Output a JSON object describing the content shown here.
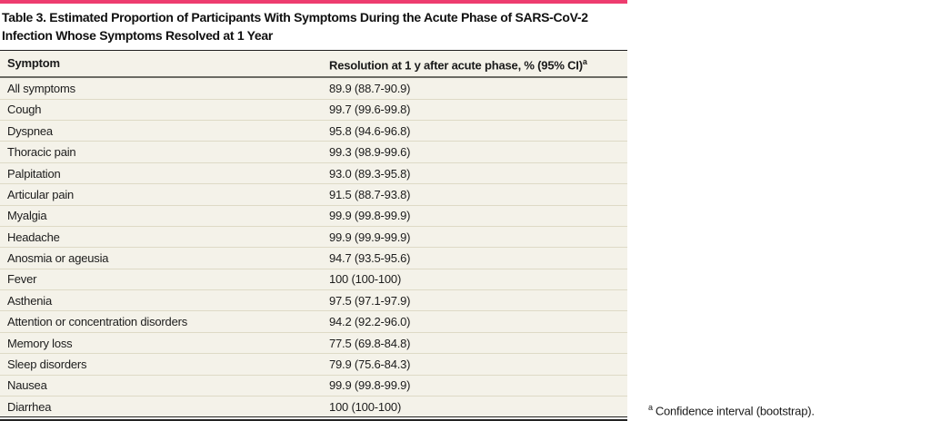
{
  "table": {
    "title": "Table 3. Estimated Proportion of Participants With Symptoms During the Acute Phase of SARS-CoV-2 Infection Whose Symptoms Resolved at 1 Year",
    "columns": {
      "symptom": "Symptom",
      "resolution": "Resolution at 1 y after acute phase, % (95% CI)"
    },
    "header_superscript": "a",
    "rows": [
      [
        "All symptoms",
        "89.9 (88.7-90.9)"
      ],
      [
        "Cough",
        "99.7 (99.6-99.8)"
      ],
      [
        "Dyspnea",
        "95.8 (94.6-96.8)"
      ],
      [
        "Thoracic pain",
        "99.3 (98.9-99.6)"
      ],
      [
        "Palpitation",
        "93.0 (89.3-95.8)"
      ],
      [
        "Articular pain",
        "91.5 (88.7-93.8)"
      ],
      [
        "Myalgia",
        "99.9 (99.8-99.9)"
      ],
      [
        "Headache",
        "99.9 (99.9-99.9)"
      ],
      [
        "Anosmia or ageusia",
        "94.7 (93.5-95.6)"
      ],
      [
        "Fever",
        "100 (100-100)"
      ],
      [
        "Asthenia",
        "97.5 (97.1-97.9)"
      ],
      [
        "Attention or concentration disorders",
        "94.2 (92.2-96.0)"
      ],
      [
        "Memory loss",
        "77.5 (69.8-84.8)"
      ],
      [
        "Sleep disorders",
        "79.9 (75.6-84.3)"
      ],
      [
        "Nausea",
        "99.9 (99.8-99.9)"
      ],
      [
        "Diarrhea",
        "100 (100-100)"
      ]
    ],
    "footnote": {
      "marker": "a",
      "text": "Confidence interval (bootstrap)."
    }
  },
  "chart_data": {
    "type": "table",
    "title": "Table 3. Estimated Proportion of Participants With Symptoms During the Acute Phase of SARS-CoV-2 Infection Whose Symptoms Resolved at 1 Year",
    "columns": [
      "Symptom",
      "Resolution at 1 y after acute phase, % (95% CI)"
    ],
    "categories": [
      "All symptoms",
      "Cough",
      "Dyspnea",
      "Thoracic pain",
      "Palpitation",
      "Articular pain",
      "Myalgia",
      "Headache",
      "Anosmia or ageusia",
      "Fever",
      "Asthenia",
      "Attention or concentration disorders",
      "Memory loss",
      "Sleep disorders",
      "Nausea",
      "Diarrhea"
    ],
    "values": [
      89.9,
      99.7,
      95.8,
      99.3,
      93.0,
      91.5,
      99.9,
      99.9,
      94.7,
      100,
      97.5,
      94.2,
      77.5,
      79.9,
      99.9,
      100
    ],
    "ci_low": [
      88.7,
      99.6,
      94.6,
      98.9,
      89.3,
      88.7,
      99.8,
      99.9,
      93.5,
      100,
      97.1,
      92.2,
      69.8,
      75.6,
      99.8,
      100
    ],
    "ci_high": [
      90.9,
      99.8,
      96.8,
      99.6,
      95.8,
      93.8,
      99.9,
      99.9,
      95.6,
      100,
      97.9,
      96.0,
      84.8,
      84.3,
      99.9,
      100
    ]
  },
  "colors": {
    "accent_pink": "#ee3c6f",
    "row_background": "#f4f2e9",
    "row_divider": "#dedac6",
    "header_rule_gray": "#6b6b64",
    "rule_black": "#1f1f1f"
  }
}
